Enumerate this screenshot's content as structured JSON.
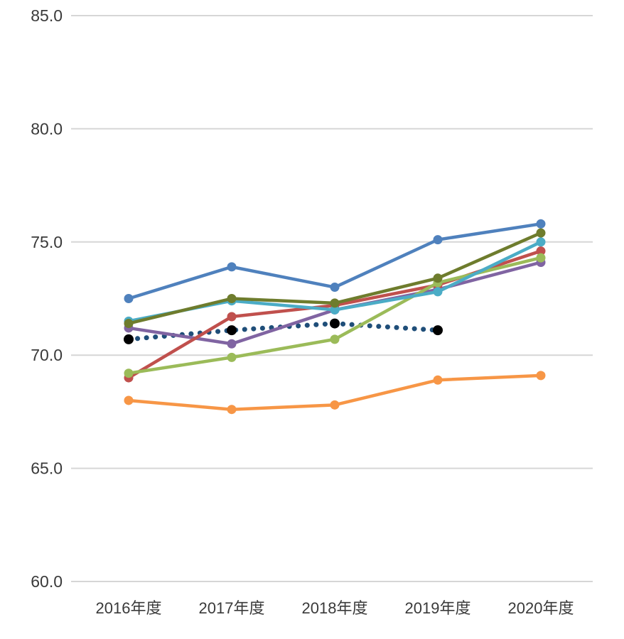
{
  "chart_data": {
    "type": "line",
    "categories": [
      "2016年度",
      "2017年度",
      "2018年度",
      "2019年度",
      "2020年度"
    ],
    "series": [
      {
        "name": "dotted-black",
        "color": "#1F4E79",
        "marker_color": "#000000",
        "line_style": "dotted",
        "values": [
          70.7,
          71.1,
          71.4,
          71.1,
          null
        ]
      },
      {
        "name": "purple",
        "color": "#8064A2",
        "marker_color": "#8064A2",
        "line_style": "solid",
        "values": [
          71.2,
          70.5,
          72.0,
          72.9,
          74.1
        ]
      },
      {
        "name": "red",
        "color": "#C0504D",
        "marker_color": "#C0504D",
        "line_style": "solid",
        "values": [
          69.0,
          71.7,
          72.2,
          73.1,
          74.6
        ]
      },
      {
        "name": "light-green",
        "color": "#9BBB59",
        "marker_color": "#9BBB59",
        "line_style": "solid",
        "values": [
          69.2,
          69.9,
          70.7,
          73.2,
          74.3
        ]
      },
      {
        "name": "teal",
        "color": "#4BACC6",
        "marker_color": "#4BACC6",
        "line_style": "solid",
        "values": [
          71.5,
          72.4,
          72.0,
          72.8,
          75.0
        ]
      },
      {
        "name": "olive",
        "color": "#6E7C2D",
        "marker_color": "#6E7C2D",
        "line_style": "solid",
        "values": [
          71.4,
          72.5,
          72.3,
          73.4,
          75.4
        ]
      },
      {
        "name": "blue",
        "color": "#4F81BD",
        "marker_color": "#4F81BD",
        "line_style": "solid",
        "values": [
          72.5,
          73.9,
          73.0,
          75.1,
          75.8
        ]
      },
      {
        "name": "orange",
        "color": "#F79646",
        "marker_color": "#F79646",
        "line_style": "solid",
        "values": [
          68.0,
          67.6,
          67.8,
          68.9,
          69.1
        ]
      }
    ],
    "title": "",
    "xlabel": "",
    "ylabel": "",
    "ylim": [
      60.0,
      85.0
    ],
    "y_ticks": [
      "85.0",
      "80.0",
      "75.0",
      "70.0",
      "65.0",
      "60.0"
    ],
    "y_tick_values": [
      85,
      80,
      75,
      70,
      65,
      60
    ],
    "grid": true,
    "legend": false,
    "gridline_color": "#D6D6D6",
    "tick_label_color": "#3A3A3A"
  }
}
